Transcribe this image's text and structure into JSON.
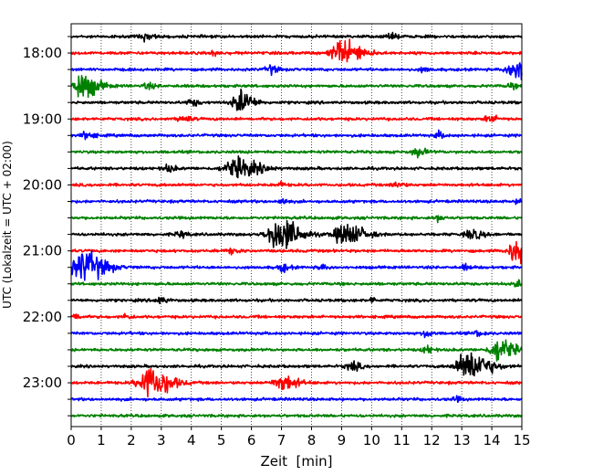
{
  "chart_data": {
    "type": "line",
    "title": "",
    "xlabel": "Zeit  [min]",
    "ylabel": "UTC (Lokalzeit = UTC + 02:00)",
    "xlim": [
      0,
      15
    ],
    "x_ticks": [
      "0",
      "1",
      "2",
      "3",
      "4",
      "5",
      "6",
      "7",
      "8",
      "9",
      "10",
      "11",
      "12",
      "13",
      "14",
      "15"
    ],
    "y_tick_labels": [
      "18:00",
      "19:00",
      "20:00",
      "21:00",
      "22:00",
      "23:00"
    ],
    "grid": "vertical dotted lines at each minute",
    "colors": [
      "#000000",
      "#ff0000",
      "#0000ff",
      "#008000"
    ],
    "trace_interval_min": 15,
    "traces": [
      {
        "start": "17:45",
        "color": "#000000",
        "events": [
          [
            2.4,
            0.35,
            0.25
          ],
          [
            10.6,
            0.3,
            0.2
          ]
        ]
      },
      {
        "start": "18:00",
        "color": "#ff0000",
        "events": [
          [
            9.0,
            1.4,
            0.5
          ],
          [
            4.7,
            0.3,
            0.15
          ]
        ]
      },
      {
        "start": "18:15",
        "color": "#0000ff",
        "events": [
          [
            14.8,
            1.3,
            0.4
          ],
          [
            6.6,
            0.5,
            0.2
          ],
          [
            11.7,
            0.3,
            0.15
          ]
        ]
      },
      {
        "start": "18:30",
        "color": "#008000",
        "events": [
          [
            0.3,
            1.5,
            0.45
          ],
          [
            2.5,
            0.3,
            0.2
          ],
          [
            14.6,
            0.3,
            0.15
          ]
        ]
      },
      {
        "start": "18:45",
        "color": "#000000",
        "events": [
          [
            5.6,
            1.3,
            0.35
          ],
          [
            4.0,
            0.4,
            0.2
          ]
        ]
      },
      {
        "start": "19:00",
        "color": "#ff0000",
        "events": [
          [
            3.7,
            0.45,
            0.2
          ],
          [
            13.9,
            0.45,
            0.2
          ]
        ]
      },
      {
        "start": "19:15",
        "color": "#0000ff",
        "events": [
          [
            0.5,
            0.45,
            0.2
          ],
          [
            12.2,
            0.4,
            0.15
          ]
        ]
      },
      {
        "start": "19:30",
        "color": "#008000",
        "events": [
          [
            11.5,
            0.45,
            0.25
          ]
        ]
      },
      {
        "start": "19:45",
        "color": "#000000",
        "events": [
          [
            5.5,
            1.05,
            0.6
          ],
          [
            3.2,
            0.4,
            0.2
          ]
        ]
      },
      {
        "start": "20:00",
        "color": "#ff0000",
        "events": [
          [
            10.8,
            0.35,
            0.2
          ],
          [
            6.9,
            0.3,
            0.15
          ]
        ]
      },
      {
        "start": "20:15",
        "color": "#0000ff",
        "events": [
          [
            7.0,
            0.35,
            0.15
          ],
          [
            14.9,
            0.35,
            0.15
          ]
        ]
      },
      {
        "start": "20:30",
        "color": "#008000",
        "events": [
          [
            12.2,
            0.35,
            0.15
          ]
        ]
      },
      {
        "start": "20:45",
        "color": "#000000",
        "events": [
          [
            6.9,
            1.9,
            0.55
          ],
          [
            9.1,
            1.25,
            0.5
          ],
          [
            13.3,
            0.55,
            0.3
          ],
          [
            3.6,
            0.35,
            0.2
          ]
        ]
      },
      {
        "start": "21:00",
        "color": "#ff0000",
        "events": [
          [
            14.8,
            1.5,
            0.35
          ],
          [
            5.3,
            0.35,
            0.2
          ]
        ]
      },
      {
        "start": "21:15",
        "color": "#0000ff",
        "events": [
          [
            0.4,
            1.8,
            0.55
          ],
          [
            7.0,
            0.45,
            0.2
          ],
          [
            8.3,
            0.3,
            0.15
          ],
          [
            13.1,
            0.3,
            0.15
          ]
        ]
      },
      {
        "start": "21:30",
        "color": "#008000",
        "events": [
          [
            14.8,
            0.35,
            0.15
          ]
        ]
      },
      {
        "start": "21:45",
        "color": "#000000",
        "events": [
          [
            2.9,
            0.4,
            0.2
          ],
          [
            10.0,
            0.35,
            0.1
          ]
        ]
      },
      {
        "start": "22:00",
        "color": "#ff0000",
        "events": [
          [
            0.1,
            0.4,
            0.15
          ],
          [
            1.8,
            0.3,
            0.15
          ]
        ]
      },
      {
        "start": "22:15",
        "color": "#0000ff",
        "events": [
          [
            11.8,
            0.55,
            0.15
          ],
          [
            13.5,
            0.3,
            0.2
          ]
        ]
      },
      {
        "start": "22:30",
        "color": "#008000",
        "events": [
          [
            14.2,
            1.3,
            0.4
          ],
          [
            11.8,
            0.55,
            0.15
          ]
        ]
      },
      {
        "start": "22:45",
        "color": "#000000",
        "events": [
          [
            13.2,
            1.8,
            0.55
          ],
          [
            9.3,
            0.5,
            0.25
          ]
        ]
      },
      {
        "start": "23:00",
        "color": "#ff0000",
        "events": [
          [
            2.6,
            1.8,
            0.55
          ],
          [
            7.0,
            0.9,
            0.4
          ]
        ]
      },
      {
        "start": "23:15",
        "color": "#0000ff",
        "events": [
          [
            12.8,
            0.25,
            0.15
          ]
        ]
      },
      {
        "start": "23:30",
        "color": "#008000",
        "events": []
      }
    ]
  }
}
